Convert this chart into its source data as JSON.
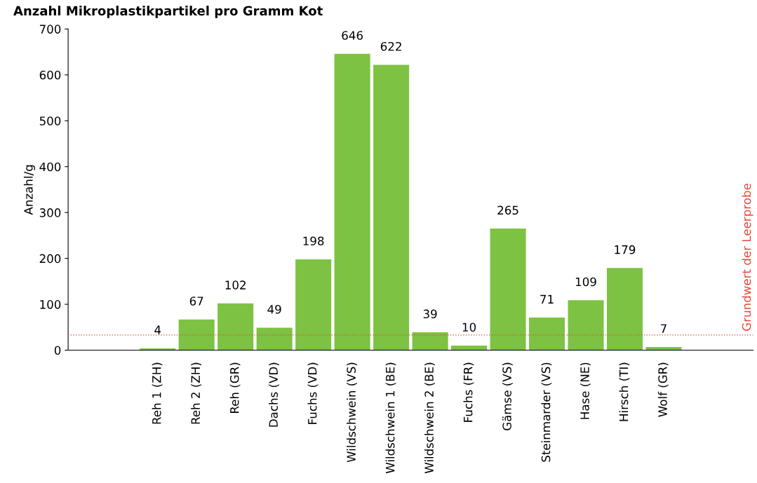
{
  "chart_data": {
    "type": "bar",
    "title": "Anzahl Mikroplastikpartikel pro Gramm Kot",
    "ylabel": "Anzahl/g",
    "categories": [
      "Reh 1 (ZH)",
      "Reh 2 (ZH)",
      "Reh (GR)",
      "Dachs (VD)",
      "Fuchs (VD)",
      "Wildschwein (VS)",
      "Wildschwein 1 (BE)",
      "Wildschwein 2 (BE)",
      "Fuchs (FR)",
      "Gämse (VS)",
      "Steinmarder (VS)",
      "Hase (NE)",
      "Hirsch (TI)",
      "Wolf (GR)"
    ],
    "values": [
      4,
      67,
      102,
      49,
      198,
      646,
      622,
      39,
      10,
      265,
      71,
      109,
      179,
      7
    ],
    "color": "#7dc242",
    "data_labels": true,
    "ylim": [
      0,
      700
    ],
    "yticks": [
      0,
      100,
      200,
      300,
      400,
      500,
      600,
      700
    ],
    "grid": false,
    "legend": false,
    "ref_lines": [
      {
        "axis": "y",
        "value": 33,
        "label": "Grundwert der Leerprobe",
        "color": "#e8473a",
        "line_style": "dotted"
      }
    ]
  }
}
